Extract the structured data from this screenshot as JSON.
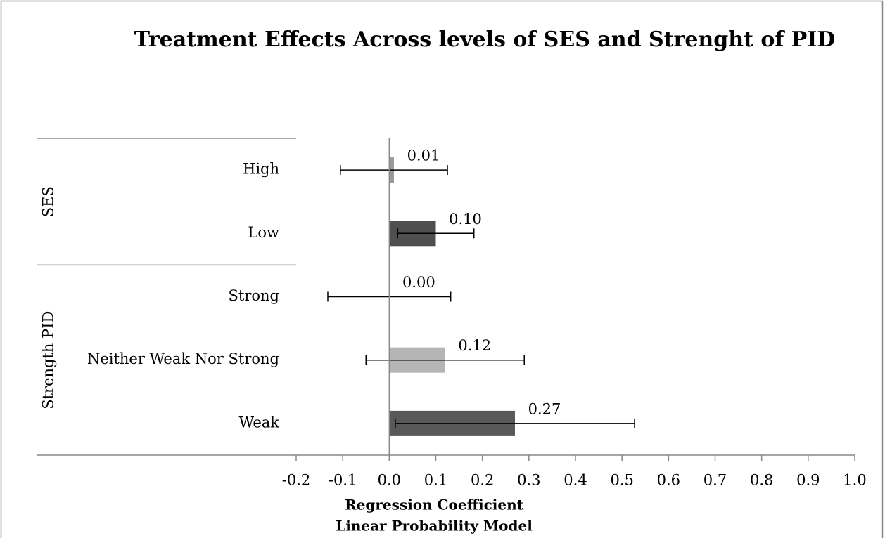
{
  "chart_data": {
    "type": "bar",
    "orientation": "horizontal",
    "title": "Treatment Effects Across levels of SES and Strenght of PID",
    "xlabel": [
      "Regression Coefficient",
      "Linear Probability Model"
    ],
    "groups": [
      {
        "name": "SES",
        "categories": [
          "High",
          "Low"
        ],
        "values": [
          0.01,
          0.1
        ],
        "value_labels": [
          "0.01",
          "0.10"
        ],
        "errors": [
          0.115,
          0.082
        ],
        "colors": [
          "#9a9a9a",
          "#4f4f4f"
        ]
      },
      {
        "name": "Strength PID",
        "categories": [
          "Strong",
          "Neither Weak Nor Strong",
          "Weak"
        ],
        "values": [
          0,
          0.12,
          0.27
        ],
        "value_labels": [
          "0.00",
          "0.12",
          "0.27"
        ],
        "errors": [
          0.132,
          0.17,
          0.257
        ],
        "colors": [
          "#7f7f7f",
          "#b5b5b5",
          "#595959"
        ]
      }
    ],
    "xlim": [
      -0.2,
      1.0
    ],
    "xticks": [
      -0.2,
      -0.1,
      {
        "value": 0,
        "label": "0.0"
      },
      0.1,
      0.2,
      0.3,
      0.4,
      0.5,
      0.6,
      0.7,
      0.8,
      0.9,
      {
        "value": 1,
        "label": "1.0"
      }
    ],
    "grid": false
  }
}
